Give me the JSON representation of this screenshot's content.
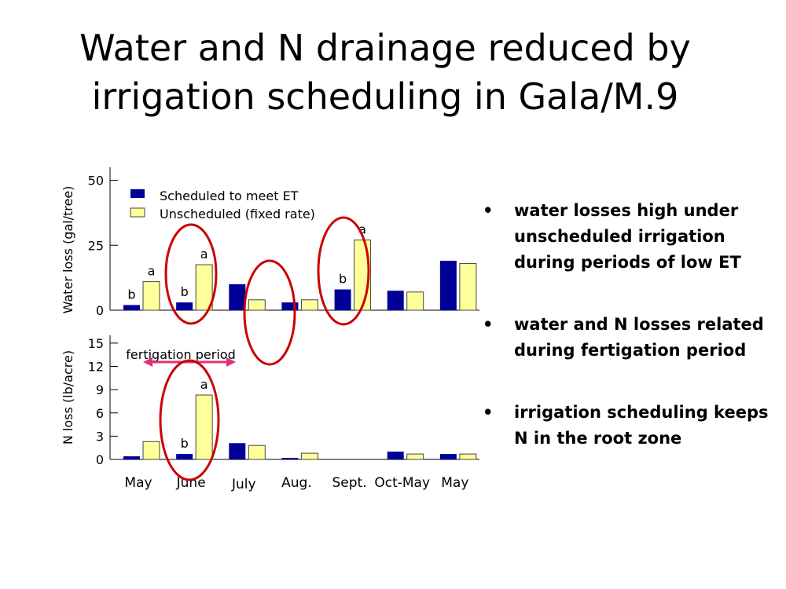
{
  "slide": {
    "title_line1": "Water and N drainage reduced by",
    "title_line2": "irrigation scheduling in Gala/M.9"
  },
  "bullets": [
    {
      "text": "water losses high under unscheduled irrigation during periods of low ET"
    },
    {
      "text": "water and N losses related during fertigation period"
    },
    {
      "text": "irrigation scheduling keeps N in the root zone"
    }
  ],
  "bullet_symbol": "•",
  "colors": {
    "scheduled": "#000099",
    "unscheduled": "#FFFF99",
    "circle": "#CC0000",
    "arrow": "#E0307A"
  },
  "chart_data": [
    {
      "type": "bar",
      "ylabel": "Water loss (gal/tree)",
      "ylim": [
        0,
        55
      ],
      "yticks": [
        0,
        25,
        50
      ],
      "categories": [
        "May",
        "June",
        "July",
        "Aug.",
        "Sept.",
        "Oct-May",
        "May"
      ],
      "series": [
        {
          "name": "Scheduled to meet ET",
          "values": [
            2,
            3,
            10,
            3,
            8,
            7.5,
            19
          ]
        },
        {
          "name": "Unscheduled (fixed rate)",
          "values": [
            11,
            17.5,
            4,
            4,
            27,
            7,
            18
          ]
        }
      ],
      "letters": [
        {
          "category": 0,
          "series": 0,
          "text": "b"
        },
        {
          "category": 0,
          "series": 1,
          "text": "a"
        },
        {
          "category": 1,
          "series": 0,
          "text": "b"
        },
        {
          "category": 1,
          "series": 1,
          "text": "a"
        },
        {
          "category": 4,
          "series": 0,
          "text": "b"
        },
        {
          "category": 4,
          "series": 1,
          "text": "a"
        }
      ],
      "legend": "top-left"
    },
    {
      "type": "bar",
      "ylabel": "N loss (lb/acre)",
      "ylim": [
        0,
        16
      ],
      "yticks": [
        0,
        3,
        6,
        9,
        12,
        15
      ],
      "categories": [
        "May",
        "June",
        "July",
        "Aug.",
        "Sept.",
        "Oct-May",
        "May"
      ],
      "series": [
        {
          "name": "Scheduled to meet ET",
          "values": [
            0.4,
            0.7,
            2.1,
            0.2,
            0,
            1,
            0.7
          ]
        },
        {
          "name": "Unscheduled (fixed rate)",
          "values": [
            2.3,
            8.3,
            1.8,
            0.8,
            0,
            0.7,
            0.7
          ]
        }
      ],
      "letters": [
        {
          "category": 1,
          "series": 0,
          "text": "b"
        },
        {
          "category": 1,
          "series": 1,
          "text": "a"
        }
      ],
      "annotation": "fertigation period",
      "annotation_span": [
        "May",
        "July"
      ]
    }
  ]
}
